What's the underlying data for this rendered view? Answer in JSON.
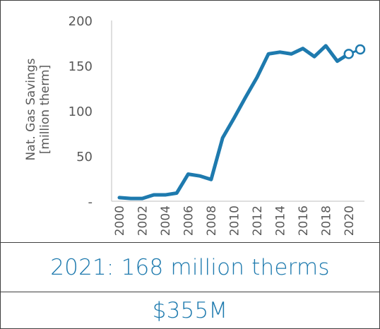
{
  "chart_data": {
    "type": "line",
    "title": "",
    "xlabel": "",
    "ylabel": [
      "Nat. Gas Savings",
      "[million therm]"
    ],
    "ylim": [
      0,
      200
    ],
    "yticks": [
      {
        "value": 0,
        "label": "-"
      },
      {
        "value": 50,
        "label": "50"
      },
      {
        "value": 100,
        "label": "100"
      },
      {
        "value": 150,
        "label": "150"
      },
      {
        "value": 200,
        "label": "200"
      }
    ],
    "xlim": [
      2000,
      2021
    ],
    "xtick_labels": [
      "2000",
      "2002",
      "2004",
      "2006",
      "2008",
      "2010",
      "2012",
      "2014",
      "2016",
      "2018",
      "2020"
    ],
    "grid": false,
    "series": [
      {
        "x": [
          2000,
          2001,
          2002,
          2003,
          2004,
          2005,
          2006,
          2007,
          2008,
          2009,
          2010,
          2011,
          2012,
          2013,
          2014,
          2015,
          2016,
          2017,
          2018,
          2019,
          2020,
          2021
        ],
        "y": [
          4,
          3,
          3,
          7,
          7,
          9,
          30,
          28,
          24,
          70,
          92,
          115,
          137,
          163,
          165,
          163,
          169,
          160,
          172,
          155,
          163,
          168
        ],
        "projected_from": 2020,
        "color": "#1E7AAE"
      }
    ]
  },
  "summary": {
    "text": "2021: 168 million therms"
  },
  "cost": {
    "text": "$355M"
  }
}
